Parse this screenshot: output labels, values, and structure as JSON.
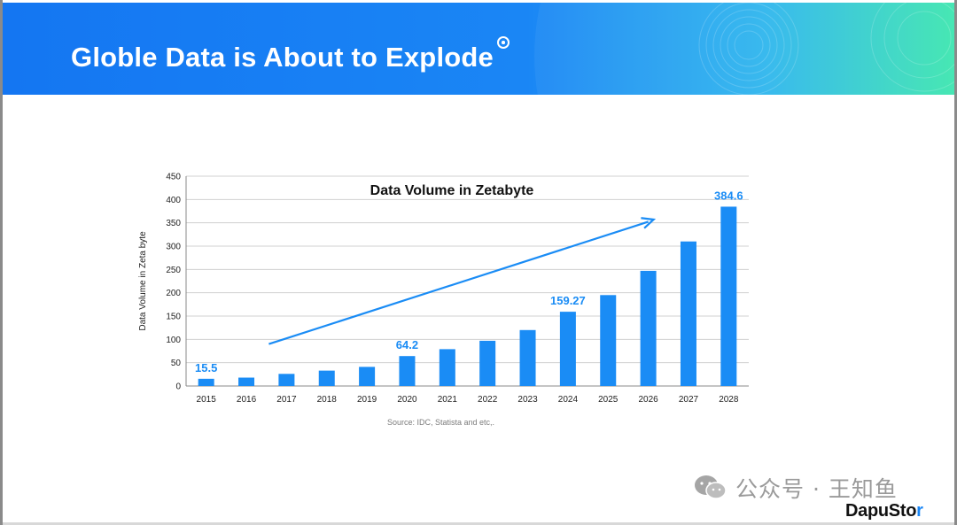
{
  "slide": {
    "title": "Globle Data is About to Explode",
    "source": "Source: IDC, Statista and etc,.",
    "watermark": "公众号 · 王知鱼",
    "brand_main": "DapuSto",
    "brand_accent": "r",
    "colors": {
      "banner_start": "#1476f2",
      "banner_end": "#3ee6b0",
      "bar": "#1a8cf5",
      "label": "#1a8cf5"
    },
    "icons": {
      "title_marker": "target-dot-icon",
      "watermark_icon": "wechat-icon"
    }
  },
  "chart_data": {
    "type": "bar",
    "title": "Data Volume in Zetabyte",
    "xlabel": "",
    "ylabel": "Data Volume in Zeta byte",
    "categories": [
      "2015",
      "2016",
      "2017",
      "2018",
      "2019",
      "2020",
      "2021",
      "2022",
      "2023",
      "2024",
      "2025",
      "2026",
      "2027",
      "2028"
    ],
    "values": [
      15.5,
      18,
      26,
      33,
      41,
      64.2,
      79,
      97,
      120,
      159.27,
      195,
      247,
      310,
      384.6
    ],
    "data_labels": [
      {
        "category": "2015",
        "text": "15.5"
      },
      {
        "category": "2020",
        "text": "64.2"
      },
      {
        "category": "2024",
        "text": "159.27"
      },
      {
        "category": "2028",
        "text": "384.6"
      }
    ],
    "ylim": [
      0,
      450
    ],
    "yticks": [
      0,
      50,
      100,
      150,
      200,
      250,
      300,
      350,
      400,
      450
    ],
    "grid": true,
    "legend": "none",
    "annotation": {
      "type": "trend-arrow",
      "from": {
        "category": "2017",
        "value": 90
      },
      "to": {
        "category": "2026",
        "value": 357
      }
    }
  }
}
